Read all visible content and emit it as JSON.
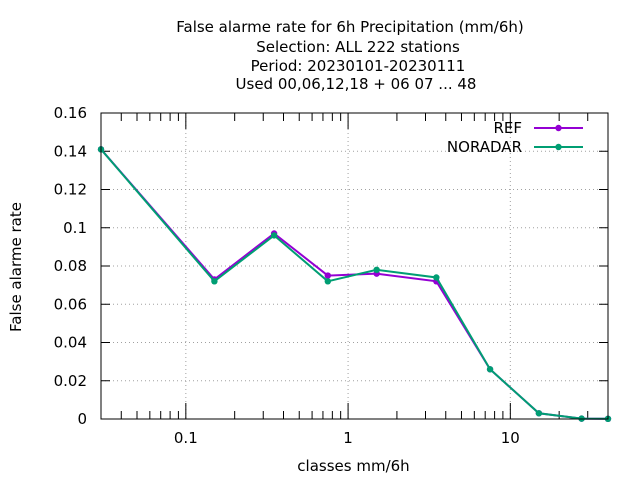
{
  "chart_data": {
    "type": "line",
    "title_lines": [
      "False alarme rate  for 6h Precipitation (mm/6h)",
      "Selection: ALL    222 stations",
      "Period: 20230101-20230111",
      "Used  00,06,12,18 + 06 07 ... 48"
    ],
    "xlabel": "classes mm/6h",
    "ylabel": "False alarme rate",
    "x_scale": "log",
    "xlim": [
      0.03,
      40
    ],
    "ylim": [
      0,
      0.16
    ],
    "x_ticks": [
      {
        "value": 0.1,
        "label": "0.1"
      },
      {
        "value": 1,
        "label": "1"
      },
      {
        "value": 10,
        "label": "10"
      }
    ],
    "y_ticks": [
      {
        "value": 0,
        "label": "0"
      },
      {
        "value": 0.02,
        "label": "0.02"
      },
      {
        "value": 0.04,
        "label": "0.04"
      },
      {
        "value": 0.06,
        "label": "0.06"
      },
      {
        "value": 0.08,
        "label": "0.08"
      },
      {
        "value": 0.1,
        "label": "0.1"
      },
      {
        "value": 0.12,
        "label": "0.12"
      },
      {
        "value": 0.14,
        "label": "0.14"
      },
      {
        "value": 0.16,
        "label": "0.16"
      }
    ],
    "grid": true,
    "legend_position": "top-right",
    "x": [
      0.03,
      0.15,
      0.35,
      0.75,
      1.5,
      3.5,
      7.5,
      15,
      27.5,
      40
    ],
    "series": [
      {
        "name": "REF",
        "color": "#9400d3",
        "values": [
          0.141,
          0.073,
          0.097,
          0.075,
          0.076,
          0.072,
          0.026,
          0.003,
          0.0002,
          0.0001
        ]
      },
      {
        "name": "NORADAR",
        "color": "#009e73",
        "values": [
          0.141,
          0.072,
          0.096,
          0.072,
          0.078,
          0.074,
          0.026,
          0.003,
          0.0002,
          0.0001
        ]
      }
    ]
  }
}
